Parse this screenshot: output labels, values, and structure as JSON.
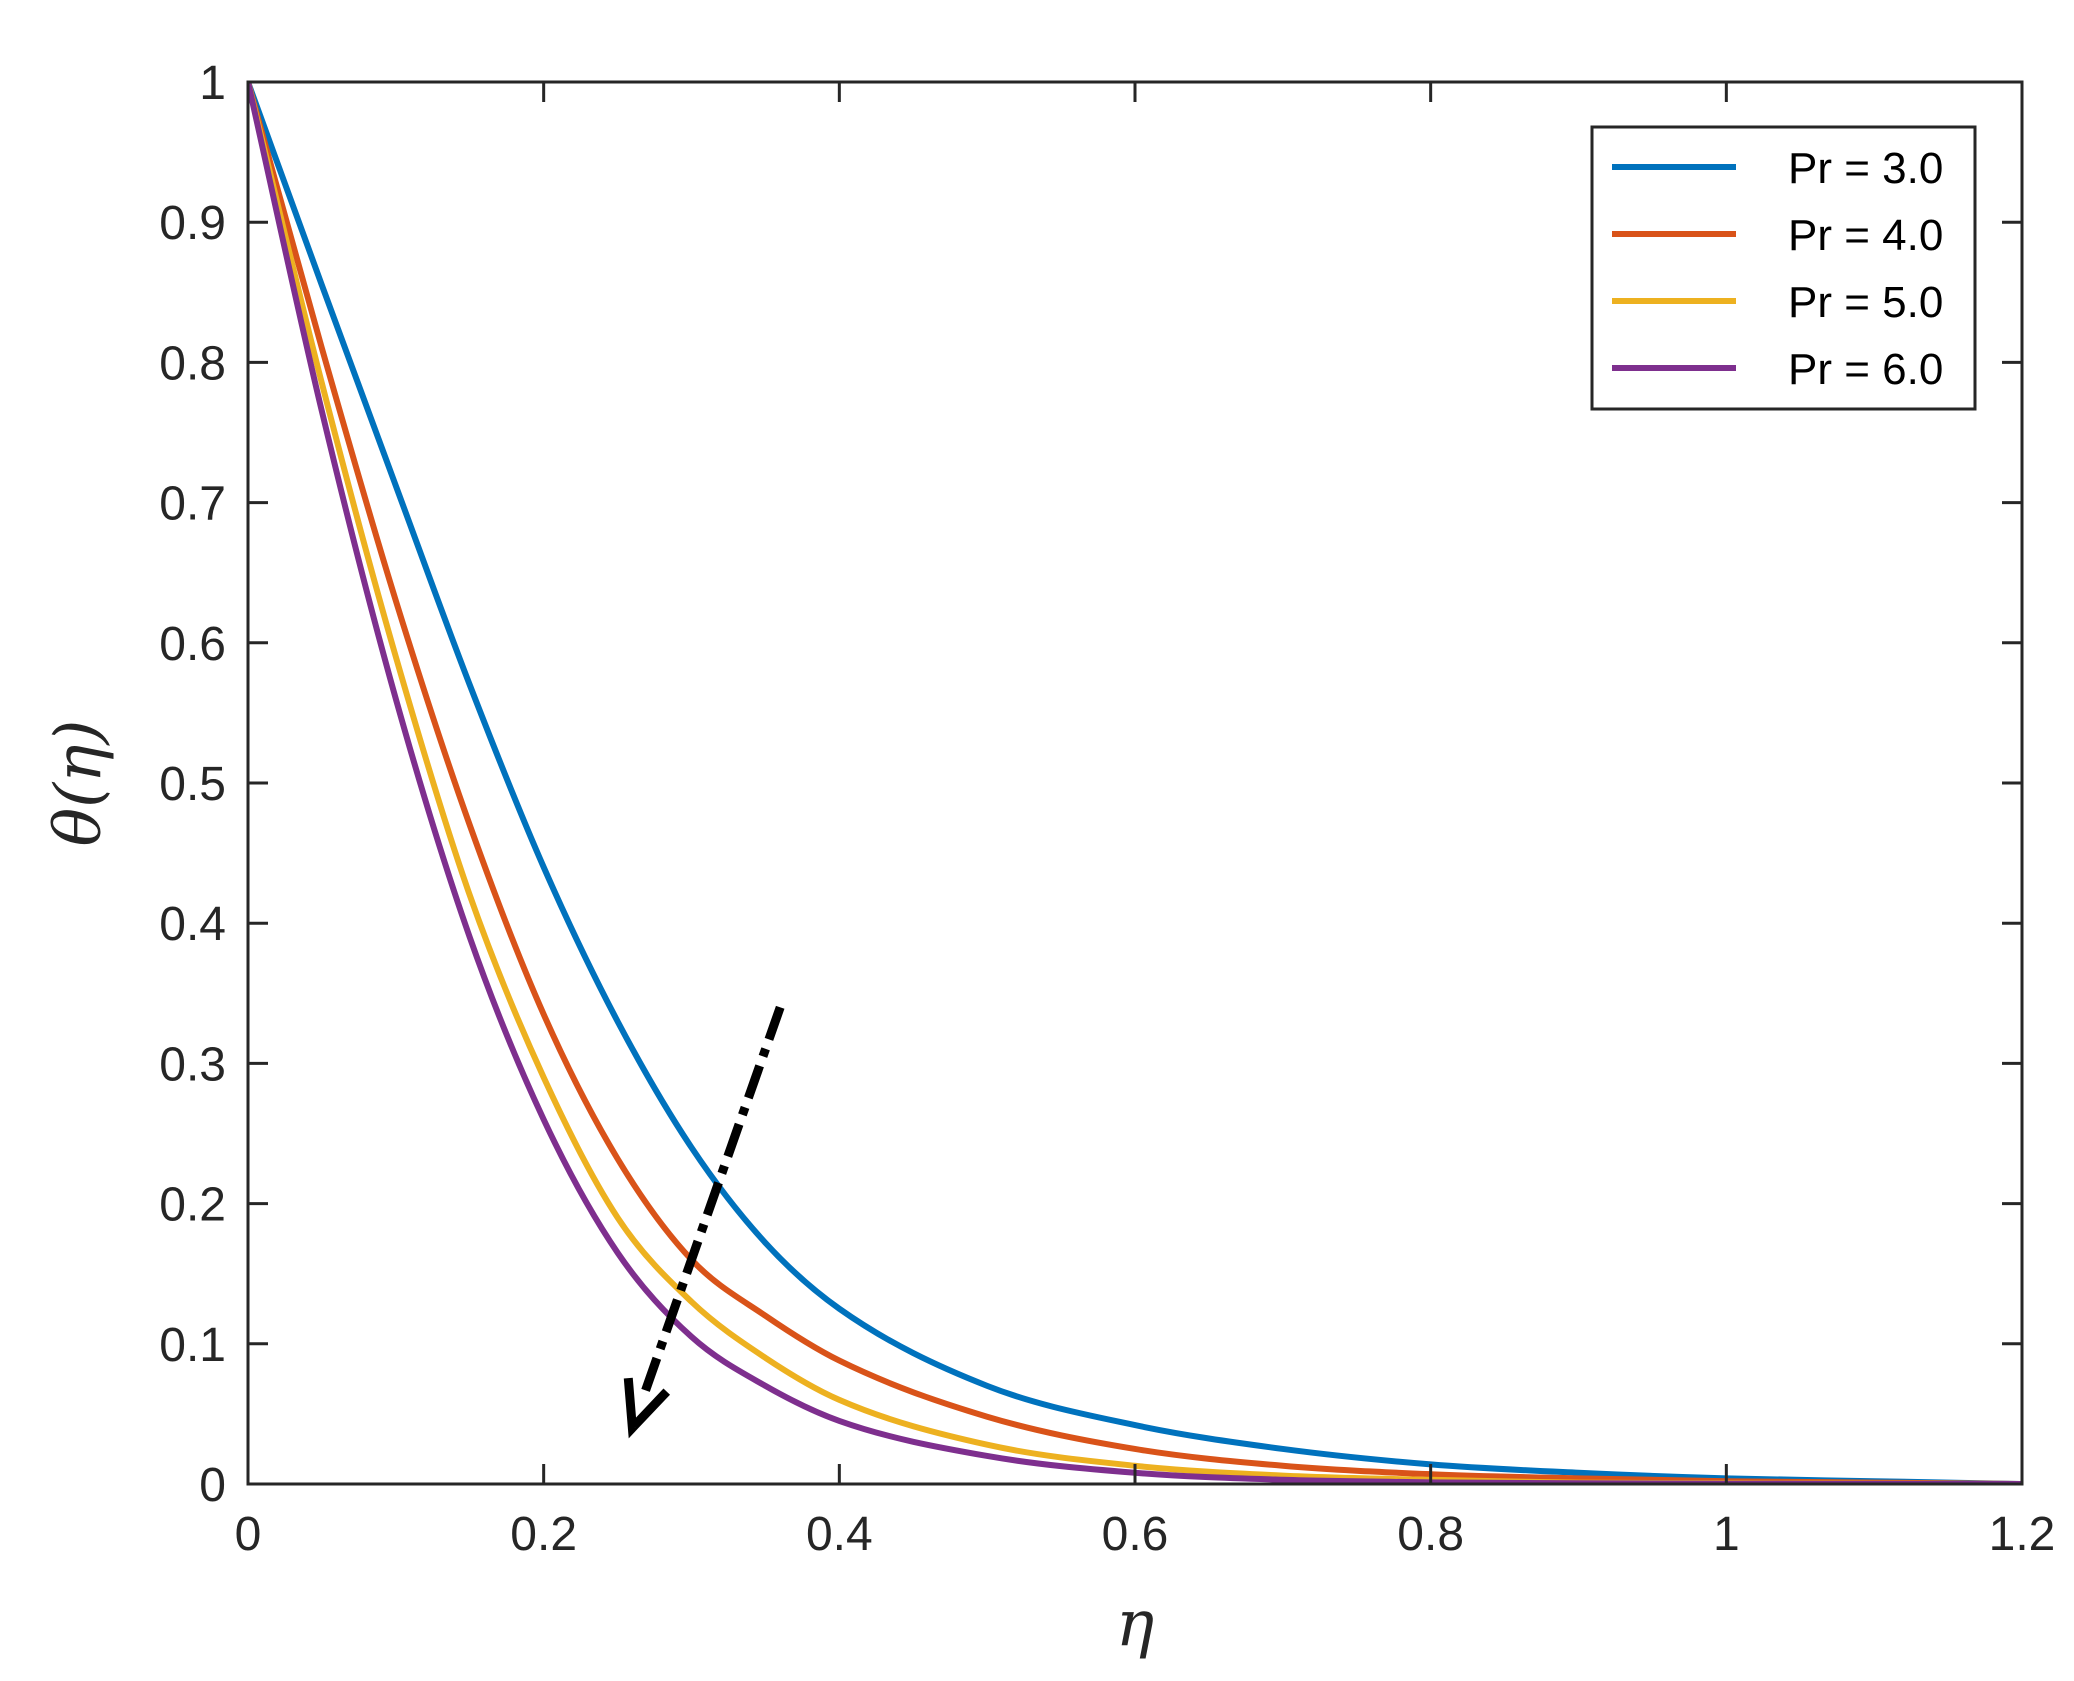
{
  "chart_data": {
    "type": "line",
    "title": "",
    "xlabel": "η",
    "ylabel": "θ(η)",
    "xlim": [
      0,
      1.2
    ],
    "ylim": [
      0,
      1
    ],
    "xticks": [
      0,
      0.2,
      0.4,
      0.6,
      0.8,
      1,
      1.2
    ],
    "xtick_labels": [
      "0",
      "0.2",
      "0.4",
      "0.6",
      "0.8",
      "1",
      "1.2"
    ],
    "yticks": [
      0,
      0.1,
      0.2,
      0.3,
      0.4,
      0.5,
      0.6,
      0.7,
      0.8,
      0.9,
      1
    ],
    "ytick_labels": [
      "0",
      "0.1",
      "0.2",
      "0.3",
      "0.4",
      "0.5",
      "0.6",
      "0.7",
      "0.8",
      "0.9",
      "1"
    ],
    "grid": false,
    "legend_position": "top-right",
    "series": [
      {
        "name": "Pr = 3.0",
        "color": "#0072BD",
        "x": [
          0,
          0.05,
          0.1,
          0.15,
          0.2,
          0.25,
          0.3,
          0.35,
          0.4,
          0.5,
          0.6,
          0.7,
          0.8,
          0.9,
          1.0,
          1.1,
          1.2
        ],
        "y": [
          1.0,
          0.855,
          0.712,
          0.57,
          0.44,
          0.33,
          0.24,
          0.172,
          0.125,
          0.07,
          0.042,
          0.025,
          0.014,
          0.008,
          0.004,
          0.002,
          0.0
        ]
      },
      {
        "name": "Pr = 4.0",
        "color": "#D95319",
        "x": [
          0,
          0.05,
          0.1,
          0.15,
          0.2,
          0.25,
          0.3,
          0.35,
          0.4,
          0.5,
          0.6,
          0.7,
          0.8,
          0.9,
          1.0,
          1.1,
          1.2
        ],
        "y": [
          1.0,
          0.81,
          0.63,
          0.47,
          0.335,
          0.232,
          0.16,
          0.12,
          0.088,
          0.048,
          0.025,
          0.013,
          0.007,
          0.004,
          0.002,
          0.001,
          0.0
        ]
      },
      {
        "name": "Pr = 5.0",
        "color": "#EDB120",
        "x": [
          0,
          0.05,
          0.1,
          0.15,
          0.2,
          0.25,
          0.3,
          0.35,
          0.4,
          0.5,
          0.6,
          0.7,
          0.8,
          0.9,
          1.0,
          1.1,
          1.2
        ],
        "y": [
          1.0,
          0.785,
          0.59,
          0.42,
          0.29,
          0.19,
          0.13,
          0.09,
          0.06,
          0.028,
          0.013,
          0.006,
          0.003,
          0.001,
          0.0005,
          0.0002,
          0.0
        ]
      },
      {
        "name": "Pr = 6.0",
        "color": "#7E2F8E",
        "x": [
          0,
          0.05,
          0.1,
          0.15,
          0.2,
          0.25,
          0.3,
          0.35,
          0.4,
          0.5,
          0.6,
          0.7,
          0.8,
          0.9,
          1.0,
          1.1,
          1.2
        ],
        "y": [
          1.0,
          0.765,
          0.56,
          0.39,
          0.26,
          0.165,
          0.105,
          0.07,
          0.045,
          0.02,
          0.008,
          0.003,
          0.0012,
          0.0005,
          0.0002,
          0.0001,
          0.0
        ]
      }
    ],
    "annotation": {
      "type": "dashed-arrow",
      "from": [
        0.36,
        0.34
      ],
      "to": [
        0.26,
        0.04
      ],
      "color": "#000000"
    }
  }
}
